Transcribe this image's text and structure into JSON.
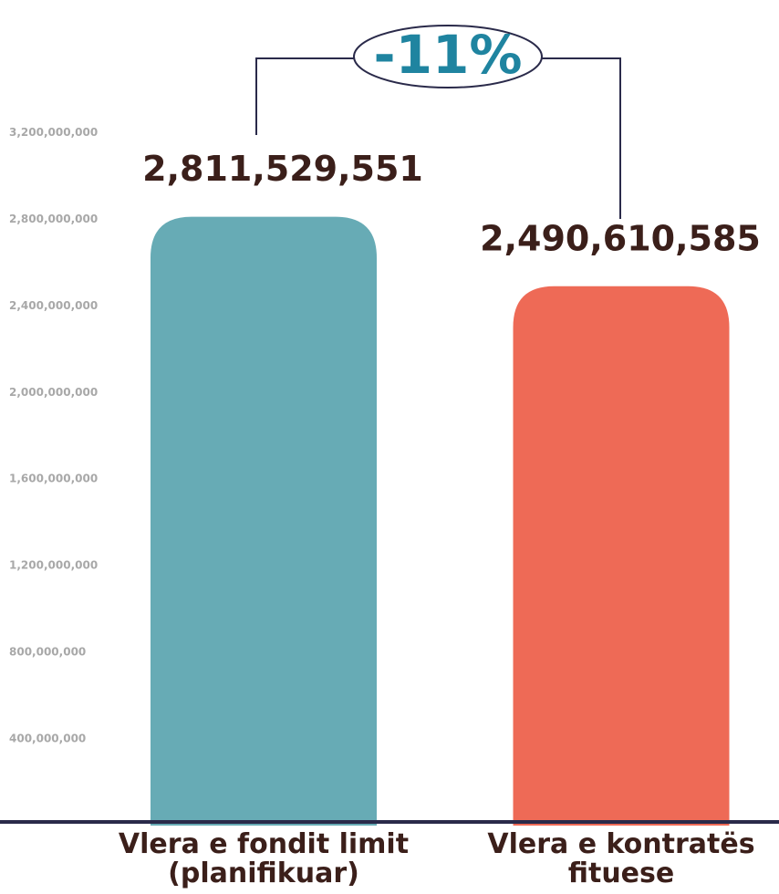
{
  "chart_data": {
    "type": "bar",
    "annotation": "-11%",
    "categories": [
      "Vlera e fondit limit (planifikuar)",
      "Vlera e kontratës fituese"
    ],
    "values": [
      2811529551,
      2490610585
    ],
    "value_labels": [
      "2,811,529,551",
      "2,490,610,585"
    ],
    "colors": [
      "#67abb5",
      "#ee6a56"
    ],
    "ylim": [
      0,
      3800000000
    ],
    "yticks": [
      {
        "value": 400000000,
        "label": "400,000,000"
      },
      {
        "value": 800000000,
        "label": "800,000,000"
      },
      {
        "value": 1200000000,
        "label": "1,200,000,000"
      },
      {
        "value": 1600000000,
        "label": "1,600,000,000"
      },
      {
        "value": 2000000000,
        "label": "2,000,000,000"
      },
      {
        "value": 2400000000,
        "label": "2,400,000,000"
      },
      {
        "value": 2800000000,
        "label": "2,800,000,000"
      },
      {
        "value": 3200000000,
        "label": "3,200,000,000"
      }
    ],
    "grid": false
  }
}
